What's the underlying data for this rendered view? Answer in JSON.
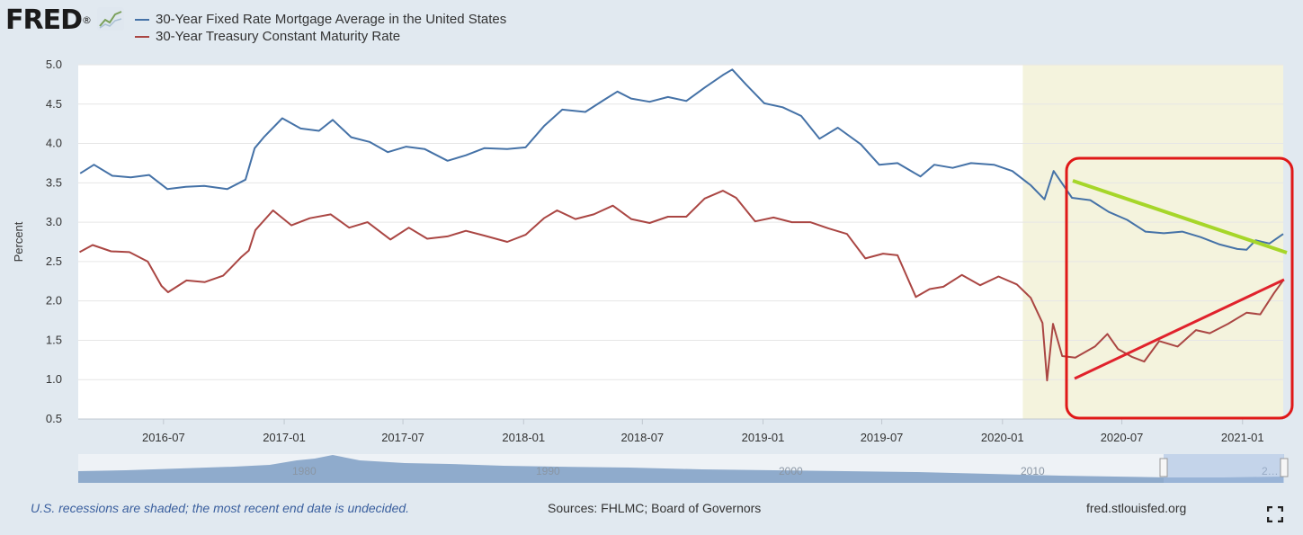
{
  "brand": {
    "logo_text": "FRED",
    "logo_mark": "®"
  },
  "icons": {
    "logo": "chart-line-icon",
    "fullscreen": "fullscreen-icon"
  },
  "colors": {
    "mortgage": "#4572a7",
    "treasury": "#aa4643",
    "recession_shade": "#f4f3dd",
    "annotation_box": "#e01818",
    "green_trend": "#a6d629",
    "red_trend": "#e0222c"
  },
  "footer": {
    "note": "U.S. recessions are shaded; the most recent end date is undecided.",
    "sources": "Sources: FHLMC; Board of Governors",
    "url": "fred.stlouisfed.org"
  },
  "chart_data": {
    "type": "line",
    "xlabel": "",
    "ylabel": "Percent",
    "ylim": [
      0.5,
      5.0
    ],
    "yticks": [
      "0.5",
      "1.0",
      "1.5",
      "2.0",
      "2.5",
      "3.0",
      "3.5",
      "4.0",
      "4.5",
      "5.0"
    ],
    "xlim": [
      "2016-02-22",
      "2021-03-04"
    ],
    "xticks": [
      "2016-07",
      "2017-01",
      "2017-07",
      "2018-01",
      "2018-07",
      "2019-01",
      "2019-07",
      "2020-01",
      "2020-07",
      "2021-01"
    ],
    "grid": true,
    "legend_position": "top-left",
    "recession_shading": [
      {
        "start": "2020-02-01",
        "end": "2021-03-04"
      }
    ],
    "series": [
      {
        "name": "30-Year Fixed Rate Mortgage Average in the United States",
        "x": [
          "2016-02-25",
          "2016-03-17",
          "2016-04-14",
          "2016-05-12",
          "2016-06-09",
          "2016-07-07",
          "2016-08-04",
          "2016-09-01",
          "2016-10-06",
          "2016-11-03",
          "2016-11-17",
          "2016-12-01",
          "2016-12-29",
          "2017-01-26",
          "2017-02-23",
          "2017-03-16",
          "2017-04-13",
          "2017-05-11",
          "2017-06-08",
          "2017-07-06",
          "2017-08-03",
          "2017-09-07",
          "2017-10-05",
          "2017-11-02",
          "2017-12-07",
          "2018-01-04",
          "2018-02-01",
          "2018-03-01",
          "2018-04-05",
          "2018-05-03",
          "2018-05-24",
          "2018-06-14",
          "2018-07-12",
          "2018-08-09",
          "2018-09-06",
          "2018-10-04",
          "2018-11-01",
          "2018-11-15",
          "2018-12-06",
          "2019-01-03",
          "2019-01-31",
          "2019-02-28",
          "2019-03-28",
          "2019-04-25",
          "2019-05-30",
          "2019-06-27",
          "2019-07-25",
          "2019-08-29",
          "2019-09-19",
          "2019-10-17",
          "2019-11-14",
          "2019-12-19",
          "2020-01-16",
          "2020-02-13",
          "2020-03-05",
          "2020-03-19",
          "2020-04-16",
          "2020-05-14",
          "2020-06-11",
          "2020-07-09",
          "2020-08-06",
          "2020-09-03",
          "2020-10-01",
          "2020-10-29",
          "2020-11-26",
          "2020-12-24",
          "2021-01-07",
          "2021-01-21",
          "2021-02-11",
          "2021-03-04"
        ],
        "values": [
          3.62,
          3.73,
          3.59,
          3.57,
          3.6,
          3.42,
          3.45,
          3.46,
          3.42,
          3.54,
          3.94,
          4.08,
          4.32,
          4.19,
          4.16,
          4.3,
          4.08,
          4.02,
          3.89,
          3.96,
          3.93,
          3.78,
          3.85,
          3.94,
          3.93,
          3.95,
          4.22,
          4.43,
          4.4,
          4.55,
          4.66,
          4.57,
          4.53,
          4.59,
          4.54,
          4.71,
          4.87,
          4.94,
          4.75,
          4.51,
          4.46,
          4.35,
          4.06,
          4.2,
          3.99,
          3.73,
          3.75,
          3.58,
          3.73,
          3.69,
          3.75,
          3.73,
          3.65,
          3.47,
          3.29,
          3.65,
          3.31,
          3.28,
          3.13,
          3.03,
          2.88,
          2.86,
          2.88,
          2.81,
          2.72,
          2.66,
          2.65,
          2.77,
          2.73,
          2.85
        ]
      },
      {
        "name": "30-Year Treasury Constant Maturity Rate",
        "x": [
          "2016-02-24",
          "2016-03-15",
          "2016-04-12",
          "2016-05-10",
          "2016-06-07",
          "2016-06-28",
          "2016-07-08",
          "2016-08-05",
          "2016-09-02",
          "2016-09-30",
          "2016-10-28",
          "2016-11-08",
          "2016-11-18",
          "2016-12-15",
          "2017-01-12",
          "2017-02-09",
          "2017-03-13",
          "2017-04-10",
          "2017-05-08",
          "2017-06-12",
          "2017-07-10",
          "2017-08-07",
          "2017-09-07",
          "2017-10-05",
          "2017-11-02",
          "2017-12-07",
          "2018-01-04",
          "2018-02-01",
          "2018-02-21",
          "2018-03-21",
          "2018-04-18",
          "2018-05-17",
          "2018-06-14",
          "2018-07-12",
          "2018-08-09",
          "2018-09-06",
          "2018-10-04",
          "2018-11-01",
          "2018-11-21",
          "2018-12-20",
          "2019-01-17",
          "2019-02-14",
          "2019-03-14",
          "2019-04-11",
          "2019-05-09",
          "2019-06-06",
          "2019-07-03",
          "2019-07-25",
          "2019-08-22",
          "2019-09-12",
          "2019-10-03",
          "2019-10-31",
          "2019-11-28",
          "2019-12-26",
          "2020-01-23",
          "2020-02-13",
          "2020-03-02",
          "2020-03-09",
          "2020-03-18",
          "2020-04-01",
          "2020-04-21",
          "2020-05-21",
          "2020-06-09",
          "2020-06-25",
          "2020-07-16",
          "2020-08-04",
          "2020-08-27",
          "2020-09-24",
          "2020-10-22",
          "2020-11-12",
          "2020-12-10",
          "2021-01-07",
          "2021-01-28",
          "2021-02-18",
          "2021-03-03"
        ],
        "values": [
          2.62,
          2.71,
          2.63,
          2.62,
          2.5,
          2.19,
          2.11,
          2.26,
          2.24,
          2.32,
          2.56,
          2.64,
          2.9,
          3.15,
          2.96,
          3.05,
          3.1,
          2.93,
          3.0,
          2.78,
          2.93,
          2.79,
          2.82,
          2.89,
          2.83,
          2.75,
          2.84,
          3.05,
          3.15,
          3.04,
          3.1,
          3.21,
          3.04,
          2.99,
          3.07,
          3.07,
          3.3,
          3.4,
          3.31,
          3.01,
          3.06,
          3.0,
          3.0,
          2.92,
          2.85,
          2.54,
          2.6,
          2.58,
          2.05,
          2.15,
          2.18,
          2.33,
          2.2,
          2.31,
          2.21,
          2.04,
          1.72,
          0.99,
          1.71,
          1.3,
          1.28,
          1.42,
          1.58,
          1.39,
          1.29,
          1.23,
          1.49,
          1.42,
          1.63,
          1.59,
          1.71,
          1.85,
          1.83,
          2.1,
          2.25
        ]
      }
    ]
  }
}
